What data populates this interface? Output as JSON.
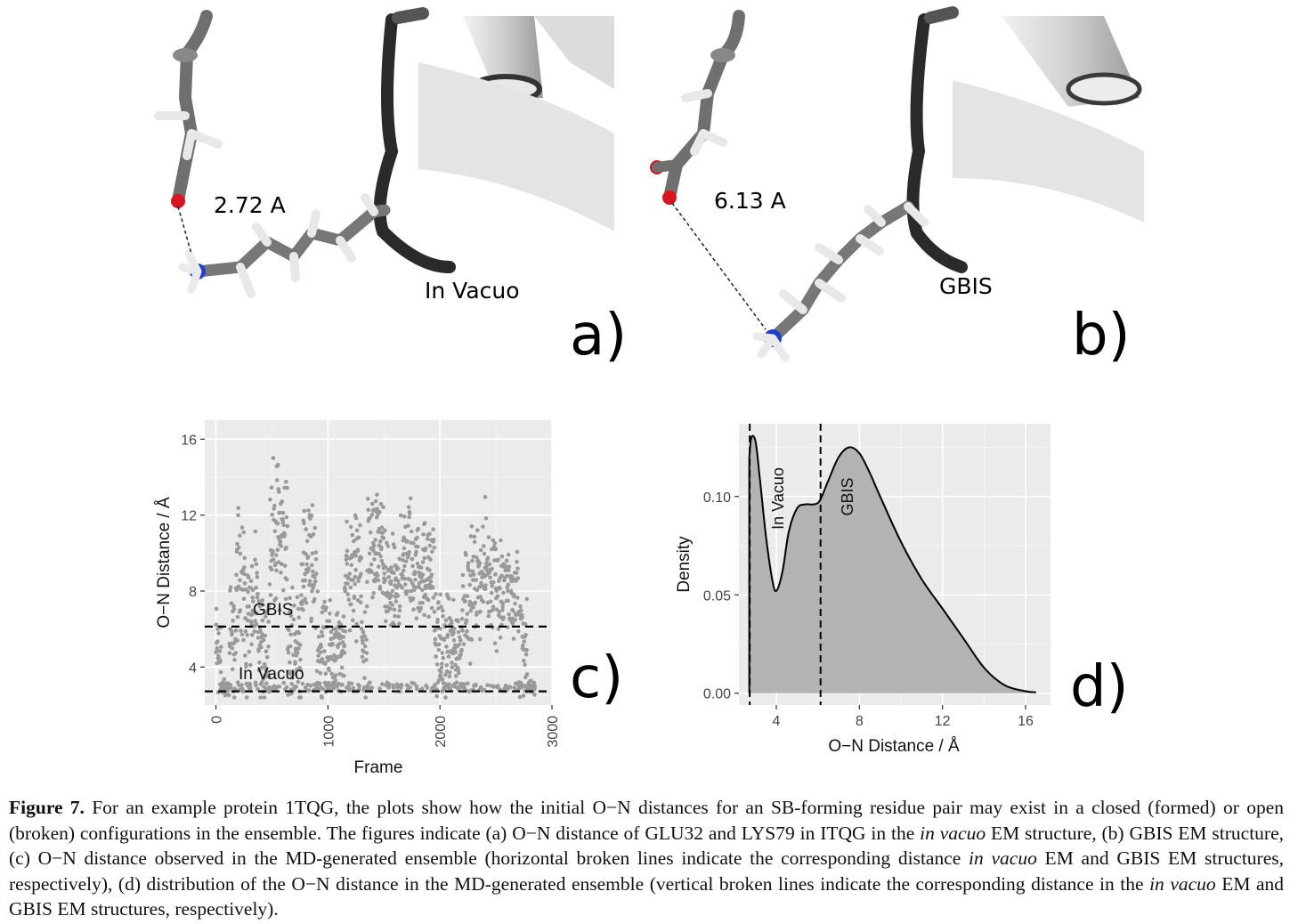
{
  "panel_a": {
    "distance_label": "2.72 A",
    "method_label": "In Vacuo",
    "panel_letter": "a)"
  },
  "panel_b": {
    "distance_label": "6.13 A",
    "method_label": "GBIS",
    "panel_letter": "b)"
  },
  "panel_c_letter": "c)",
  "panel_d_letter": "d)",
  "chart_data": [
    {
      "type": "scatter",
      "panel": "c",
      "xlabel": "Frame",
      "ylabel": "O−N Distance / Å",
      "xlim": [
        -100,
        3000
      ],
      "ylim": [
        2.0,
        17.0
      ],
      "xticks": [
        0,
        1000,
        2000,
        3000
      ],
      "yticks": [
        4,
        8,
        12,
        16
      ],
      "grid": true,
      "point_color": "#9a9a9a",
      "hlines": [
        {
          "y": 6.13,
          "label": "GBIS",
          "style": "dashed"
        },
        {
          "y": 2.72,
          "label": "In Vacuo",
          "style": "dashed"
        }
      ],
      "n_frames": 2850,
      "point_density_note": "dense clusters between 3 and 16"
    },
    {
      "type": "area",
      "panel": "d",
      "xlabel": "O−N Distance / Å",
      "ylabel": "Density",
      "xlim": [
        2.2,
        17.2
      ],
      "ylim": [
        -0.006,
        0.137
      ],
      "xticks": [
        4,
        8,
        12,
        16
      ],
      "yticks": [
        0.0,
        0.05,
        0.1
      ],
      "ytick_labels": [
        "0.00",
        "0.05",
        "0.10"
      ],
      "grid": true,
      "fill_color": "#b3b3b3",
      "vlines": [
        {
          "x": 2.72,
          "label": "In Vacuo",
          "style": "dashed"
        },
        {
          "x": 6.13,
          "label": "GBIS",
          "style": "dashed"
        }
      ],
      "x": [
        2.7,
        2.8,
        3.0,
        3.2,
        3.5,
        3.8,
        4.0,
        4.3,
        4.6,
        5.0,
        5.4,
        5.8,
        6.1,
        6.5,
        7.0,
        7.5,
        8.0,
        8.5,
        9.0,
        10.0,
        11.0,
        12.0,
        13.0,
        14.0,
        15.0,
        16.0,
        16.5
      ],
      "y": [
        0.12,
        0.13,
        0.128,
        0.11,
        0.08,
        0.058,
        0.052,
        0.062,
        0.082,
        0.094,
        0.096,
        0.096,
        0.098,
        0.108,
        0.12,
        0.125,
        0.122,
        0.112,
        0.1,
        0.077,
        0.058,
        0.043,
        0.028,
        0.013,
        0.004,
        0.001,
        0.0005
      ]
    }
  ],
  "caption": {
    "figure_label": "Figure 7.",
    "seg1": " For an example protein 1TQG, the plots show how the initial O−N distances for an SB-forming residue pair may exist in a closed (formed) or open (broken) configurations in the ensemble. The figures indicate (a) O−N distance of GLU32 and LYS79 in ITQG in the ",
    "italic1": "in vacuo",
    "seg2": " EM structure, (b) GBIS EM structure, (c) O−N distance observed in the MD-generated ensemble (horizontal broken lines indicate the corresponding distance ",
    "italic2": "in vacuo",
    "seg3": " EM and GBIS EM structures, respectively), (d) distribution of the O−N distance in the MD-generated ensemble (vertical broken lines indicate the corresponding distance in the ",
    "italic3": "in vacuo",
    "seg4": " EM and GBIS EM structures, respectively)."
  }
}
